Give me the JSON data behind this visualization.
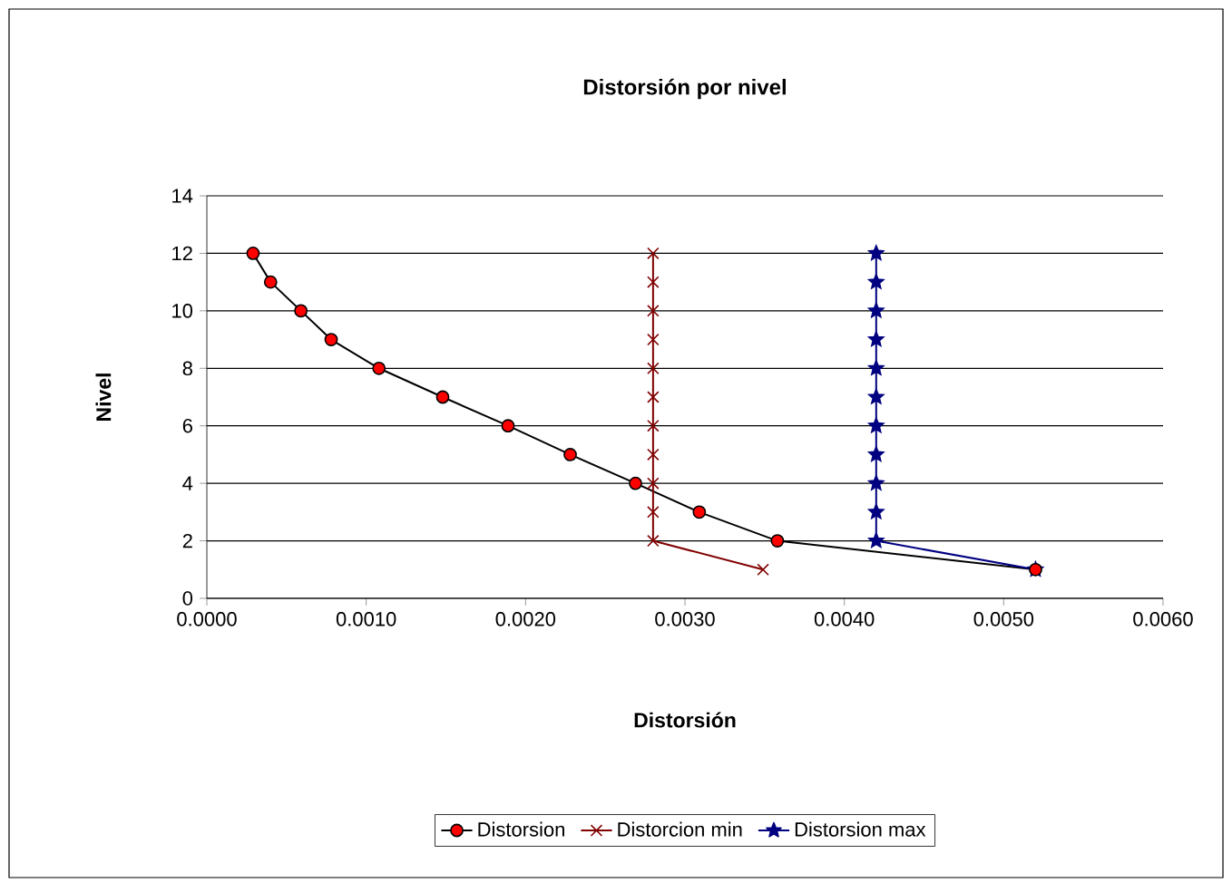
{
  "chart_data": {
    "type": "line",
    "title": "Distorsión por nivel",
    "xlabel": "Distorsión",
    "ylabel": "Nivel",
    "xlim": [
      0,
      0.006
    ],
    "ylim": [
      0,
      14
    ],
    "xticks": [
      {
        "value": 0,
        "label": "0.0000"
      },
      {
        "value": 0.001,
        "label": "0.0010"
      },
      {
        "value": 0.002,
        "label": "0.0020"
      },
      {
        "value": 0.003,
        "label": "0.0030"
      },
      {
        "value": 0.004,
        "label": "0.0040"
      },
      {
        "value": 0.005,
        "label": "0.0050"
      },
      {
        "value": 0.006,
        "label": "0.0060"
      }
    ],
    "yticks": [
      0,
      2,
      4,
      6,
      8,
      10,
      12,
      14
    ],
    "grid": "y",
    "legend": "bottom",
    "series": [
      {
        "name": "Distorsion",
        "color": "#ff0000",
        "marker": "circle",
        "x": [
          0.0052,
          0.00358,
          0.00309,
          0.00269,
          0.00228,
          0.00189,
          0.00148,
          0.00108,
          0.00078,
          0.00059,
          0.0004,
          0.00029
        ],
        "values": [
          1,
          2,
          3,
          4,
          5,
          6,
          7,
          8,
          9,
          10,
          11,
          12
        ]
      },
      {
        "name": "Distorcion min",
        "color": "#800000",
        "marker": "cross",
        "x": [
          0.00349,
          0.0028,
          0.0028,
          0.0028,
          0.0028,
          0.0028,
          0.0028,
          0.0028,
          0.0028,
          0.0028,
          0.0028,
          0.0028
        ],
        "values": [
          1,
          2,
          3,
          4,
          5,
          6,
          7,
          8,
          9,
          10,
          11,
          12
        ]
      },
      {
        "name": "Distorsion max",
        "color": "#000080",
        "marker": "star",
        "x": [
          0.0052,
          0.0042,
          0.0042,
          0.0042,
          0.0042,
          0.0042,
          0.0042,
          0.0042,
          0.0042,
          0.0042,
          0.0042,
          0.0042
        ],
        "values": [
          1,
          2,
          3,
          4,
          5,
          6,
          7,
          8,
          9,
          10,
          11,
          12
        ]
      }
    ]
  }
}
